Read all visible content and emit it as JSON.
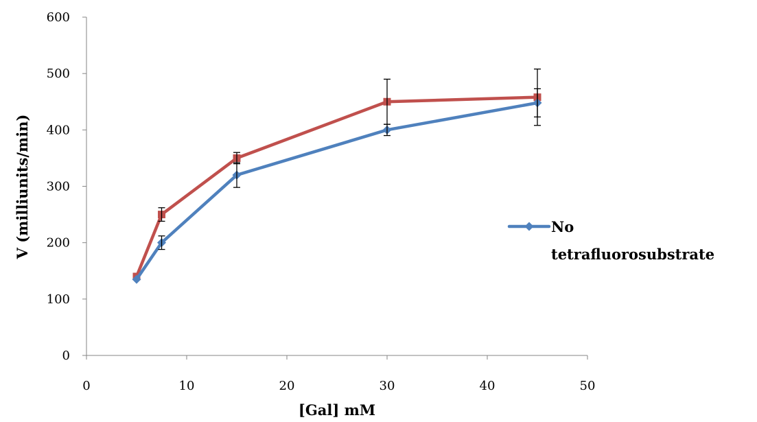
{
  "chart_data": {
    "type": "line",
    "title": "",
    "xlabel": "[Gal] mM",
    "ylabel": "V (milliunits/min)",
    "xlim": [
      0,
      50
    ],
    "ylim": [
      0,
      600
    ],
    "xticks": [
      "0",
      "10",
      "20",
      "30",
      "40",
      "50"
    ],
    "yticks": [
      "0",
      "100",
      "200",
      "300",
      "400",
      "500",
      "600"
    ],
    "grid": false,
    "legend_position": "right",
    "series": [
      {
        "name": "No tetrafluorosubstrate",
        "color": "#4f81bd",
        "marker": "diamond",
        "x": [
          5,
          7.5,
          15,
          30,
          45
        ],
        "y": [
          135,
          200,
          320,
          400,
          448
        ],
        "error": [
          0,
          12,
          22,
          10,
          25
        ]
      },
      {
        "color": "#c0504d",
        "marker": "square",
        "x": [
          5,
          7.5,
          15,
          30,
          45
        ],
        "y": [
          140,
          250,
          350,
          450,
          458
        ],
        "error": [
          0,
          12,
          10,
          40,
          50
        ]
      }
    ]
  }
}
